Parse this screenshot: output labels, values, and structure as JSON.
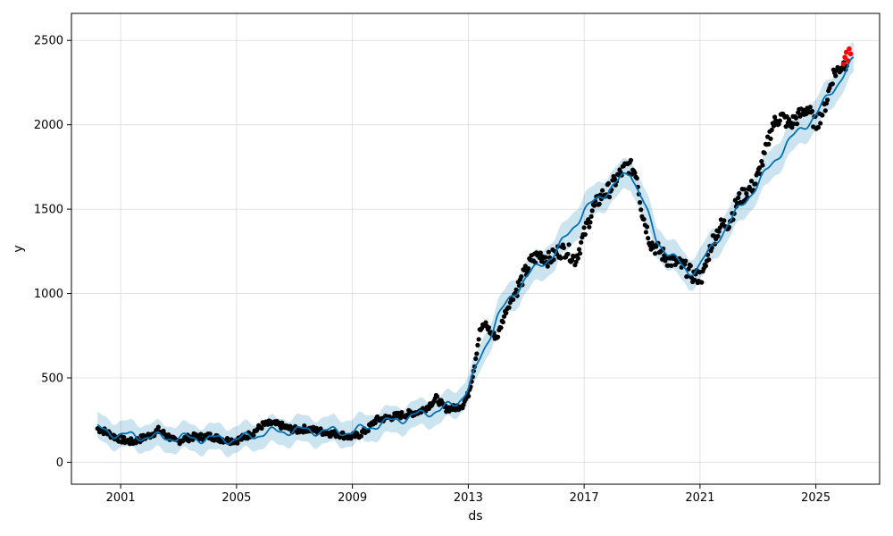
{
  "chart_data": {
    "type": "line",
    "title": "",
    "xlabel": "ds",
    "ylabel": "y",
    "x_ticks": [
      "2001",
      "2005",
      "2009",
      "2013",
      "2017",
      "2021",
      "2025"
    ],
    "y_ticks": [
      0,
      500,
      1000,
      1500,
      2000,
      2500
    ],
    "xlim": [
      1999.3,
      2027.2
    ],
    "ylim": [
      -130,
      2660
    ],
    "grid": true,
    "colors": {
      "observed": "#000000",
      "forecast_line": "#0072B2",
      "uncertainty_band": "#0072B2",
      "highlight": "#ff0000"
    },
    "series": [
      {
        "x": [
          2000.2,
          2000.5,
          2000.8,
          2001.1,
          2001.4,
          2001.7,
          2002.0,
          2002.3,
          2002.6,
          2002.9,
          2003.2,
          2003.5,
          2003.8,
          2004.1,
          2004.4,
          2004.7,
          2005.0,
          2005.3,
          2005.6,
          2005.9,
          2006.2,
          2006.5,
          2006.8,
          2007.1,
          2007.4,
          2007.7,
          2008.0,
          2008.3,
          2008.6,
          2008.9,
          2009.2,
          2009.5,
          2009.8,
          2010.1,
          2010.4,
          2010.7,
          2011.0,
          2011.3,
          2011.6,
          2011.9,
          2012.2,
          2012.5,
          2012.8,
          2013.0,
          2013.2,
          2013.4,
          2013.6,
          2013.8,
          2014.0,
          2014.3,
          2014.6,
          2014.9,
          2015.2,
          2015.5,
          2015.8,
          2016.1,
          2016.4,
          2016.7,
          2017.0,
          2017.3,
          2017.6,
          2017.9,
          2018.2,
          2018.5,
          2018.8,
          2019.0,
          2019.3,
          2019.6,
          2019.9,
          2020.2,
          2020.5,
          2020.8,
          2021.1,
          2021.4,
          2021.7,
          2022.0,
          2022.3,
          2022.6,
          2022.9,
          2023.2,
          2023.5,
          2023.8,
          2024.1,
          2024.4,
          2024.7,
          2025.0,
          2025.3,
          2025.6,
          2025.9,
          2026.1
        ],
        "y": [
          200,
          180,
          150,
          130,
          120,
          140,
          160,
          190,
          160,
          120,
          140,
          150,
          150,
          155,
          140,
          130,
          130,
          150,
          180,
          220,
          230,
          220,
          200,
          190,
          200,
          190,
          180,
          170,
          165,
          150,
          160,
          190,
          250,
          260,
          270,
          280,
          290,
          300,
          330,
          380,
          320,
          320,
          340,
          400,
          560,
          780,
          820,
          760,
          740,
          900,
          1000,
          1100,
          1200,
          1230,
          1200,
          1250,
          1260,
          1200,
          1350,
          1500,
          1580,
          1620,
          1700,
          1760,
          1720,
          1480,
          1300,
          1250,
          1200,
          1180,
          1150,
          1100,
          1100,
          1300,
          1400,
          1420,
          1550,
          1600,
          1650,
          1800,
          2000,
          2050,
          2000,
          2050,
          2100,
          2000,
          2100,
          2300,
          2350,
          2380
        ]
      },
      {
        "x": [
          2000.2,
          2001,
          2002,
          2003,
          2004,
          2005,
          2006,
          2007,
          2008,
          2009,
          2010,
          2011,
          2012,
          2012.6,
          2013,
          2013.5,
          2014,
          2015,
          2016,
          2017,
          2018,
          2018.6,
          2019,
          2019.5,
          2020,
          2020.6,
          2021,
          2022,
          2023,
          2024,
          2025,
          2026,
          2026.3
        ],
        "y": [
          200,
          160,
          150,
          145,
          140,
          135,
          175,
          190,
          185,
          180,
          230,
          270,
          310,
          350,
          440,
          650,
          860,
          1100,
          1240,
          1490,
          1640,
          1720,
          1570,
          1310,
          1230,
          1120,
          1170,
          1420,
          1650,
          1890,
          2060,
          2310,
          2380
        ]
      },
      {
        "x": [
          2025.95,
          2026.0,
          2026.05,
          2026.1,
          2026.15,
          2026.2
        ],
        "y": [
          2360,
          2400,
          2430,
          2380,
          2450,
          2420
        ]
      }
    ]
  }
}
